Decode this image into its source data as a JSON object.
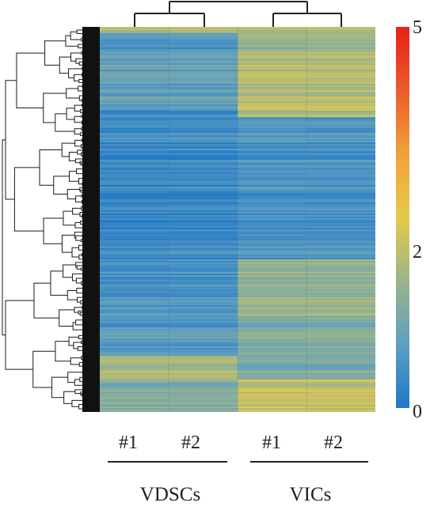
{
  "chart_data": {
    "type": "heatmap",
    "title": "",
    "columns": [
      {
        "group": "VDSCs",
        "label": "#1"
      },
      {
        "group": "VDSCs",
        "label": "#2"
      },
      {
        "group": "VICs",
        "label": "#1"
      },
      {
        "group": "VICs",
        "label": "#2"
      }
    ],
    "groups": [
      "VDSCs",
      "VICs"
    ],
    "color_scale": {
      "min": 0,
      "max": 5,
      "tick_labels": [
        "5",
        "2",
        "0"
      ],
      "tick_values": [
        5,
        2,
        0
      ],
      "colors": [
        "#1f77c8",
        "#5f9fc0",
        "#9bb48a",
        "#e6c94b",
        "#f0a23a",
        "#ec5b2c",
        "#e8201c"
      ]
    },
    "row_dendrogram": true,
    "column_dendrogram": {
      "pairs": [
        [
          "VDSCs #1",
          "VDSCs #2"
        ],
        [
          "VICs #1",
          "VICs #2"
        ]
      ]
    },
    "value_bands": [
      {
        "rows": [
          0,
          0.015
        ],
        "values": [
          2.0,
          2.0,
          2.0,
          2.0
        ]
      },
      {
        "rows": [
          0.015,
          0.06
        ],
        "values": [
          0.6,
          0.6,
          1.6,
          1.6
        ]
      },
      {
        "rows": [
          0.06,
          0.2
        ],
        "values": [
          0.9,
          0.9,
          1.9,
          1.9
        ]
      },
      {
        "rows": [
          0.2,
          0.23
        ],
        "values": [
          0.5,
          0.5,
          2.0,
          2.0
        ]
      },
      {
        "rows": [
          0.23,
          0.6
        ],
        "values": [
          0.4,
          0.4,
          0.6,
          0.6
        ]
      },
      {
        "rows": [
          0.6,
          0.75
        ],
        "values": [
          0.6,
          0.6,
          1.6,
          1.6
        ]
      },
      {
        "rows": [
          0.75,
          0.85
        ],
        "values": [
          0.7,
          0.7,
          1.3,
          1.3
        ]
      },
      {
        "rows": [
          0.85,
          0.91
        ],
        "values": [
          1.8,
          1.8,
          1.2,
          1.2
        ]
      },
      {
        "rows": [
          0.91,
          1.0
        ],
        "values": [
          1.3,
          1.3,
          2.1,
          2.1
        ]
      }
    ]
  }
}
